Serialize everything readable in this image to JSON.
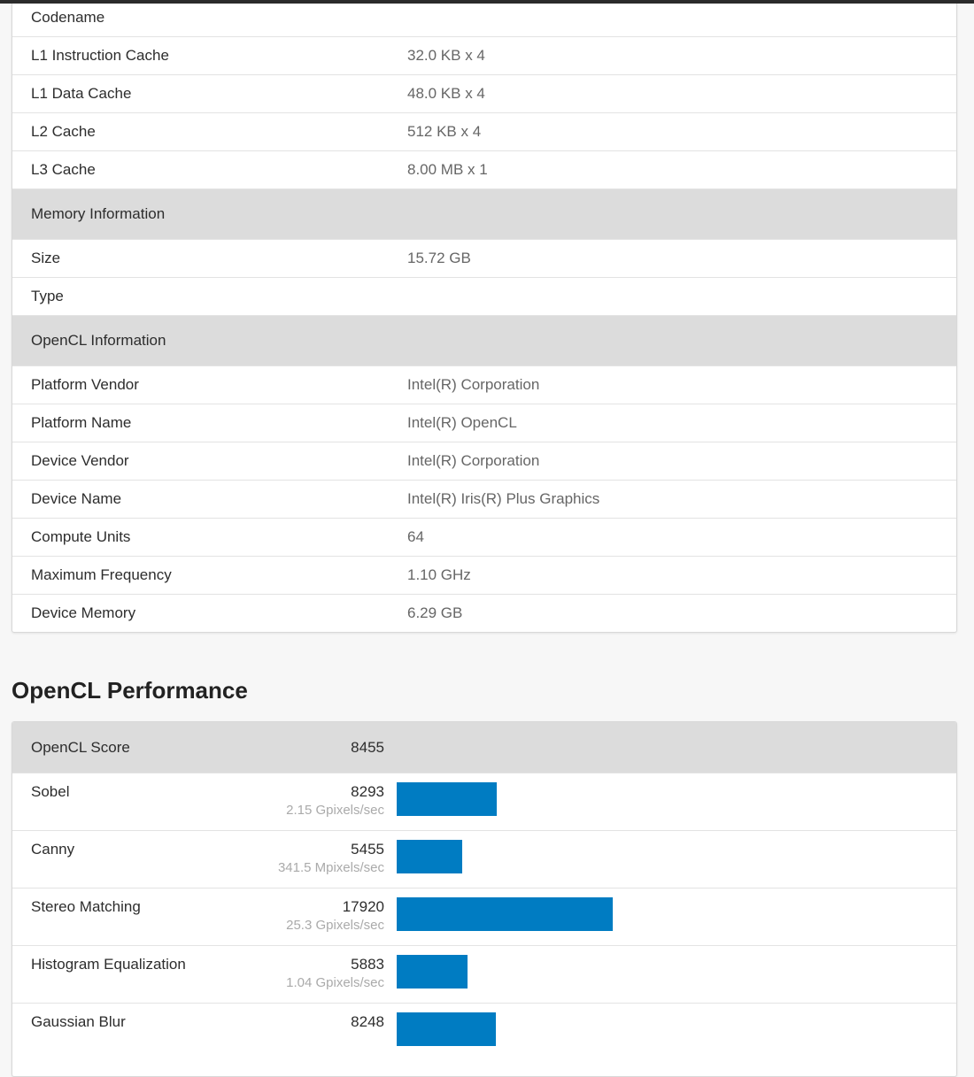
{
  "table": {
    "rows": [
      {
        "label": "Codename"
      },
      {
        "label": "L1 Instruction Cache",
        "value": "32.0 KB x 4"
      },
      {
        "label": "L1 Data Cache",
        "value": "48.0 KB x 4"
      },
      {
        "label": "L2 Cache",
        "value": "512 KB x 4"
      },
      {
        "label": "L3 Cache",
        "value": "8.00 MB x 1"
      },
      {
        "header": "Memory Information"
      },
      {
        "label": "Size",
        "value": "15.72 GB"
      },
      {
        "label": "Type"
      },
      {
        "header": "OpenCL Information"
      },
      {
        "label": "Platform Vendor",
        "value": "Intel(R) Corporation"
      },
      {
        "label": "Platform Name",
        "value": "Intel(R) OpenCL"
      },
      {
        "label": "Device Vendor",
        "value": "Intel(R) Corporation"
      },
      {
        "label": "Device Name",
        "value": "Intel(R) Iris(R) Plus Graphics"
      },
      {
        "label": "Compute Units",
        "value": "64"
      },
      {
        "label": "Maximum Frequency",
        "value": "1.10 GHz"
      },
      {
        "label": "Device Memory",
        "value": "6.29 GB"
      }
    ]
  },
  "performance": {
    "title": "OpenCL Performance",
    "score_label": "OpenCL Score",
    "score": 8455,
    "color": "#007cc2",
    "benchmarks": [
      {
        "name": "Sobel",
        "score": 8293,
        "rate": "2.15 Gpixels/sec"
      },
      {
        "name": "Canny",
        "score": 5455,
        "rate": "341.5 Mpixels/sec"
      },
      {
        "name": "Stereo Matching",
        "score": 17920,
        "rate": "25.3 Gpixels/sec"
      },
      {
        "name": "Histogram Equalization",
        "score": 5883,
        "rate": "1.04 Gpixels/sec"
      },
      {
        "name": "Gaussian Blur",
        "score": 8248
      }
    ]
  }
}
